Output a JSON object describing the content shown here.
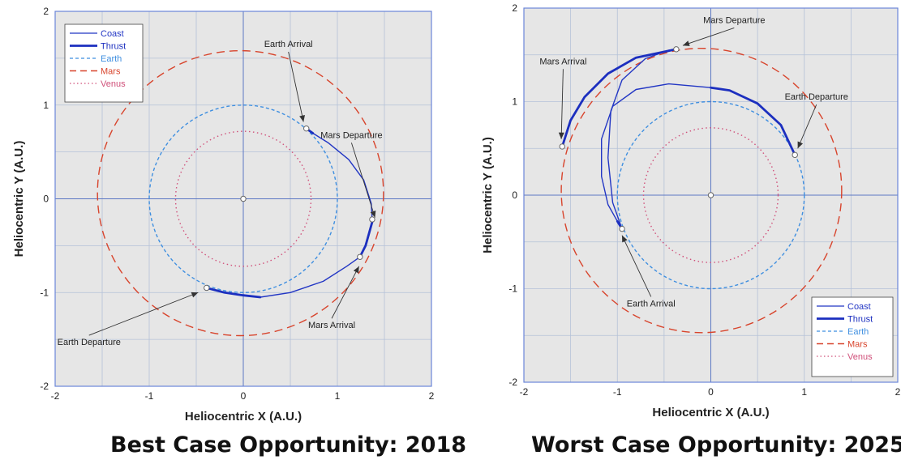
{
  "colors": {
    "plot_bg": "#e6e6e6",
    "grid": "#b4c1d8",
    "axis_line": "#5c78c4",
    "frame": "#6b86d8",
    "coast": "#2236c4",
    "thrust": "#1c2fbf",
    "earth": "#3f8fe0",
    "mars": "#d8442c",
    "venus": "#d0507a",
    "text": "#222222"
  },
  "captions": {
    "left": "Best Case Opportunity: 2018",
    "right": "Worst Case Opportunity: 2025"
  },
  "chart_data": [
    {
      "type": "line",
      "title": "",
      "xlabel": "Heliocentric X (A.U.)",
      "ylabel": "Heliocentric Y (A.U.)",
      "xlim": [
        -2,
        2
      ],
      "ylim": [
        -2,
        2
      ],
      "xticks": [
        "-2",
        "-1",
        "0",
        "1",
        "2"
      ],
      "yticks": [
        "-2",
        "-1",
        "0",
        "1",
        "2"
      ],
      "grid": true,
      "legend": {
        "position": "top-left",
        "entries": [
          "Coast",
          "Thrust",
          "Earth",
          "Mars",
          "Venus"
        ]
      },
      "orbits": [
        {
          "name": "Earth",
          "style": "dashed",
          "cx": 0,
          "cy": 0,
          "rx": 1.0,
          "ry": 1.0
        },
        {
          "name": "Mars",
          "style": "long-dashed",
          "cx": -0.03,
          "cy": 0.06,
          "rx": 1.52,
          "ry": 1.52
        },
        {
          "name": "Venus",
          "style": "dotted",
          "cx": 0,
          "cy": 0,
          "rx": 0.72,
          "ry": 0.72
        }
      ],
      "trajectory": [
        {
          "name": "Thrust",
          "points": [
            [
              -0.39,
              -0.95
            ],
            [
              -0.2,
              -1.0
            ],
            [
              0.0,
              -1.03
            ],
            [
              0.18,
              -1.05
            ]
          ]
        },
        {
          "name": "Coast",
          "points": [
            [
              0.18,
              -1.05
            ],
            [
              0.5,
              -1.0
            ],
            [
              0.85,
              -0.88
            ],
            [
              1.1,
              -0.72
            ],
            [
              1.24,
              -0.62
            ]
          ]
        },
        {
          "name": "Thrust",
          "points": [
            [
              1.24,
              -0.62
            ],
            [
              1.3,
              -0.5
            ],
            [
              1.37,
              -0.25
            ],
            [
              1.37,
              -0.22
            ]
          ]
        },
        {
          "name": "Coast",
          "points": [
            [
              1.37,
              -0.22
            ],
            [
              1.36,
              -0.05
            ],
            [
              1.28,
              0.2
            ],
            [
              1.12,
              0.42
            ],
            [
              0.9,
              0.6
            ],
            [
              0.74,
              0.7
            ]
          ]
        },
        {
          "name": "Thrust",
          "points": [
            [
              0.74,
              0.7
            ],
            [
              0.67,
              0.75
            ]
          ]
        }
      ],
      "markers": [
        {
          "label": "Earth Departure",
          "x": -0.39,
          "y": -0.95
        },
        {
          "label": "Earth Arrival",
          "x": 0.67,
          "y": 0.75
        },
        {
          "label": "Mars Departure",
          "x": 1.37,
          "y": -0.22
        },
        {
          "label": "Mars Arrival",
          "x": 1.24,
          "y": -0.62
        },
        {
          "label": "",
          "x": 0,
          "y": 0
        }
      ],
      "annotations": [
        {
          "text": "Earth Arrival",
          "x": 0.48,
          "y": 1.62,
          "tx": 0.64,
          "ty": 0.82
        },
        {
          "text": "Mars Departure",
          "x": 1.15,
          "y": 0.65,
          "tx": 1.4,
          "ty": -0.2
        },
        {
          "text": "Mars Arrival",
          "x": 0.94,
          "y": -1.38,
          "tx": 1.23,
          "ty": -0.72
        },
        {
          "text": "Earth Departure",
          "x": -1.64,
          "y": -1.56,
          "tx": -0.48,
          "ty": -1.0
        }
      ]
    },
    {
      "type": "line",
      "title": "",
      "xlabel": "Heliocentric X (A.U.)",
      "ylabel": "Heliocentric Y (A.U.)",
      "xlim": [
        -2,
        2
      ],
      "ylim": [
        -2,
        2
      ],
      "xticks": [
        "-2",
        "-1",
        "0",
        "1",
        "2"
      ],
      "yticks": [
        "-2",
        "-1",
        "0",
        "1",
        "2"
      ],
      "grid": true,
      "legend": {
        "position": "bottom-right",
        "entries": [
          "Coast",
          "Thrust",
          "Earth",
          "Mars",
          "Venus"
        ]
      },
      "orbits": [
        {
          "name": "Earth",
          "style": "dashed",
          "cx": 0,
          "cy": 0,
          "rx": 1.0,
          "ry": 1.0
        },
        {
          "name": "Mars",
          "style": "long-dashed",
          "cx": -0.1,
          "cy": 0.05,
          "rx": 1.5,
          "ry": 1.52
        },
        {
          "name": "Venus",
          "style": "dotted",
          "cx": 0,
          "cy": 0,
          "rx": 0.72,
          "ry": 0.72
        }
      ],
      "trajectory": [
        {
          "name": "Thrust",
          "points": [
            [
              0.9,
              0.43
            ],
            [
              0.75,
              0.75
            ],
            [
              0.5,
              0.98
            ],
            [
              0.2,
              1.12
            ],
            [
              0.0,
              1.15
            ]
          ]
        },
        {
          "name": "Coast",
          "points": [
            [
              0.0,
              1.15
            ],
            [
              -0.45,
              1.19
            ],
            [
              -0.8,
              1.13
            ],
            [
              -1.05,
              0.95
            ],
            [
              -1.17,
              0.6
            ],
            [
              -1.17,
              0.2
            ],
            [
              -1.1,
              -0.1
            ],
            [
              -1.0,
              -0.28
            ]
          ]
        },
        {
          "name": "Thrust",
          "points": [
            [
              -1.0,
              -0.28
            ],
            [
              -0.95,
              -0.36
            ]
          ]
        },
        {
          "name": "Coast",
          "points": [
            [
              -0.95,
              -0.36
            ],
            [
              -1.05,
              -0.08
            ],
            [
              -1.1,
              0.4
            ],
            [
              -1.07,
              0.9
            ],
            [
              -0.95,
              1.23
            ],
            [
              -0.7,
              1.46
            ],
            [
              -0.45,
              1.55
            ],
            [
              -0.37,
              1.56
            ]
          ]
        },
        {
          "name": "Thrust",
          "points": [
            [
              -0.37,
              1.56
            ],
            [
              -0.8,
              1.47
            ],
            [
              -1.1,
              1.3
            ],
            [
              -1.35,
              1.05
            ],
            [
              -1.5,
              0.8
            ],
            [
              -1.59,
              0.52
            ]
          ]
        }
      ],
      "markers": [
        {
          "label": "Earth Departure",
          "x": 0.9,
          "y": 0.43
        },
        {
          "label": "Earth Arrival",
          "x": -0.95,
          "y": -0.36
        },
        {
          "label": "Mars Departure",
          "x": -0.37,
          "y": 1.56
        },
        {
          "label": "Mars Arrival",
          "x": -1.59,
          "y": 0.52
        },
        {
          "label": "",
          "x": 0,
          "y": 0
        }
      ],
      "annotations": [
        {
          "text": "Mars Departure",
          "x": 0.25,
          "y": 1.84,
          "tx": -0.3,
          "ty": 1.6
        },
        {
          "text": "Mars Arrival",
          "x": -1.58,
          "y": 1.4,
          "tx": -1.6,
          "ty": 0.6
        },
        {
          "text": "Earth Departure",
          "x": 1.13,
          "y": 1.02,
          "tx": 0.93,
          "ty": 0.5
        },
        {
          "text": "Earth Arrival",
          "x": -0.64,
          "y": -1.19,
          "tx": -0.95,
          "ty": -0.43
        }
      ]
    }
  ]
}
